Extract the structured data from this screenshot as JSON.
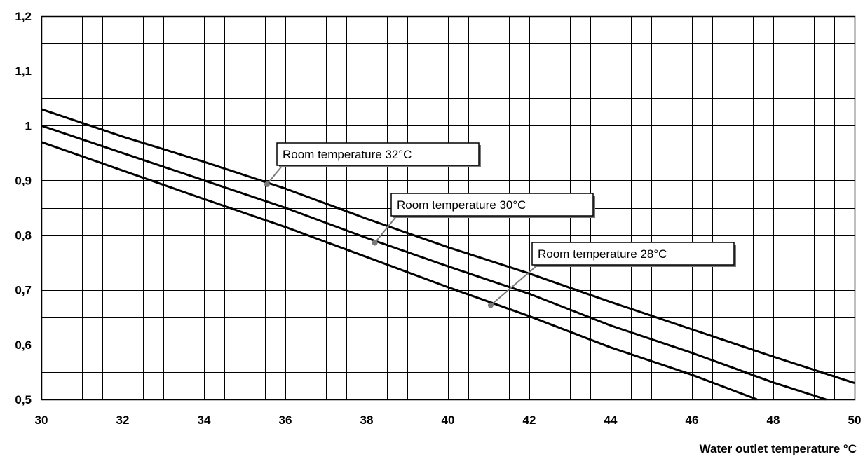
{
  "chart_data": {
    "type": "line",
    "title": "",
    "xlabel": "Water outlet temperature °C",
    "ylabel": "",
    "xlim": [
      30,
      50
    ],
    "ylim": [
      0.5,
      1.2
    ],
    "grid": true,
    "x_ticks": [
      30,
      32,
      34,
      36,
      38,
      40,
      42,
      44,
      46,
      48,
      50
    ],
    "x_tick_labels": [
      "30",
      "32",
      "34",
      "36",
      "38",
      "40",
      "42",
      "44",
      "46",
      "48",
      "50"
    ],
    "y_ticks": [
      0.5,
      0.6,
      0.7,
      0.8,
      0.9,
      1.0,
      1.1,
      1.2
    ],
    "y_tick_labels": [
      "0,5",
      "0,6",
      "0,7",
      "0,8",
      "0,9",
      "1",
      "1,1",
      "1,2"
    ],
    "series": [
      {
        "name": "Room temperature 32°C",
        "x": [
          30,
          32,
          34,
          36,
          38,
          40,
          42,
          44,
          46,
          48,
          50
        ],
        "y": [
          1.03,
          0.98,
          0.934,
          0.885,
          0.83,
          0.778,
          0.73,
          0.678,
          0.628,
          0.578,
          0.53
        ]
      },
      {
        "name": "Room temperature 30°C",
        "x": [
          30,
          32,
          34,
          36,
          38,
          40,
          42,
          44,
          46,
          48,
          49.3
        ],
        "y": [
          1.0,
          0.95,
          0.9,
          0.85,
          0.795,
          0.743,
          0.693,
          0.635,
          0.585,
          0.531,
          0.5
        ]
      },
      {
        "name": "Room temperature 28°C",
        "x": [
          30,
          32,
          34,
          36,
          38,
          40,
          42,
          44,
          46,
          47.6
        ],
        "y": [
          0.97,
          0.918,
          0.866,
          0.815,
          0.76,
          0.705,
          0.652,
          0.595,
          0.545,
          0.5
        ]
      }
    ],
    "annotations": [
      {
        "text": "Room temperature 32°C",
        "point": [
          35.55,
          0.893
        ]
      },
      {
        "text": "Room temperature 30°C",
        "point": [
          38.2,
          0.786
        ]
      },
      {
        "text": "Room temperature 28°C",
        "point": [
          41.05,
          0.672
        ]
      }
    ]
  }
}
